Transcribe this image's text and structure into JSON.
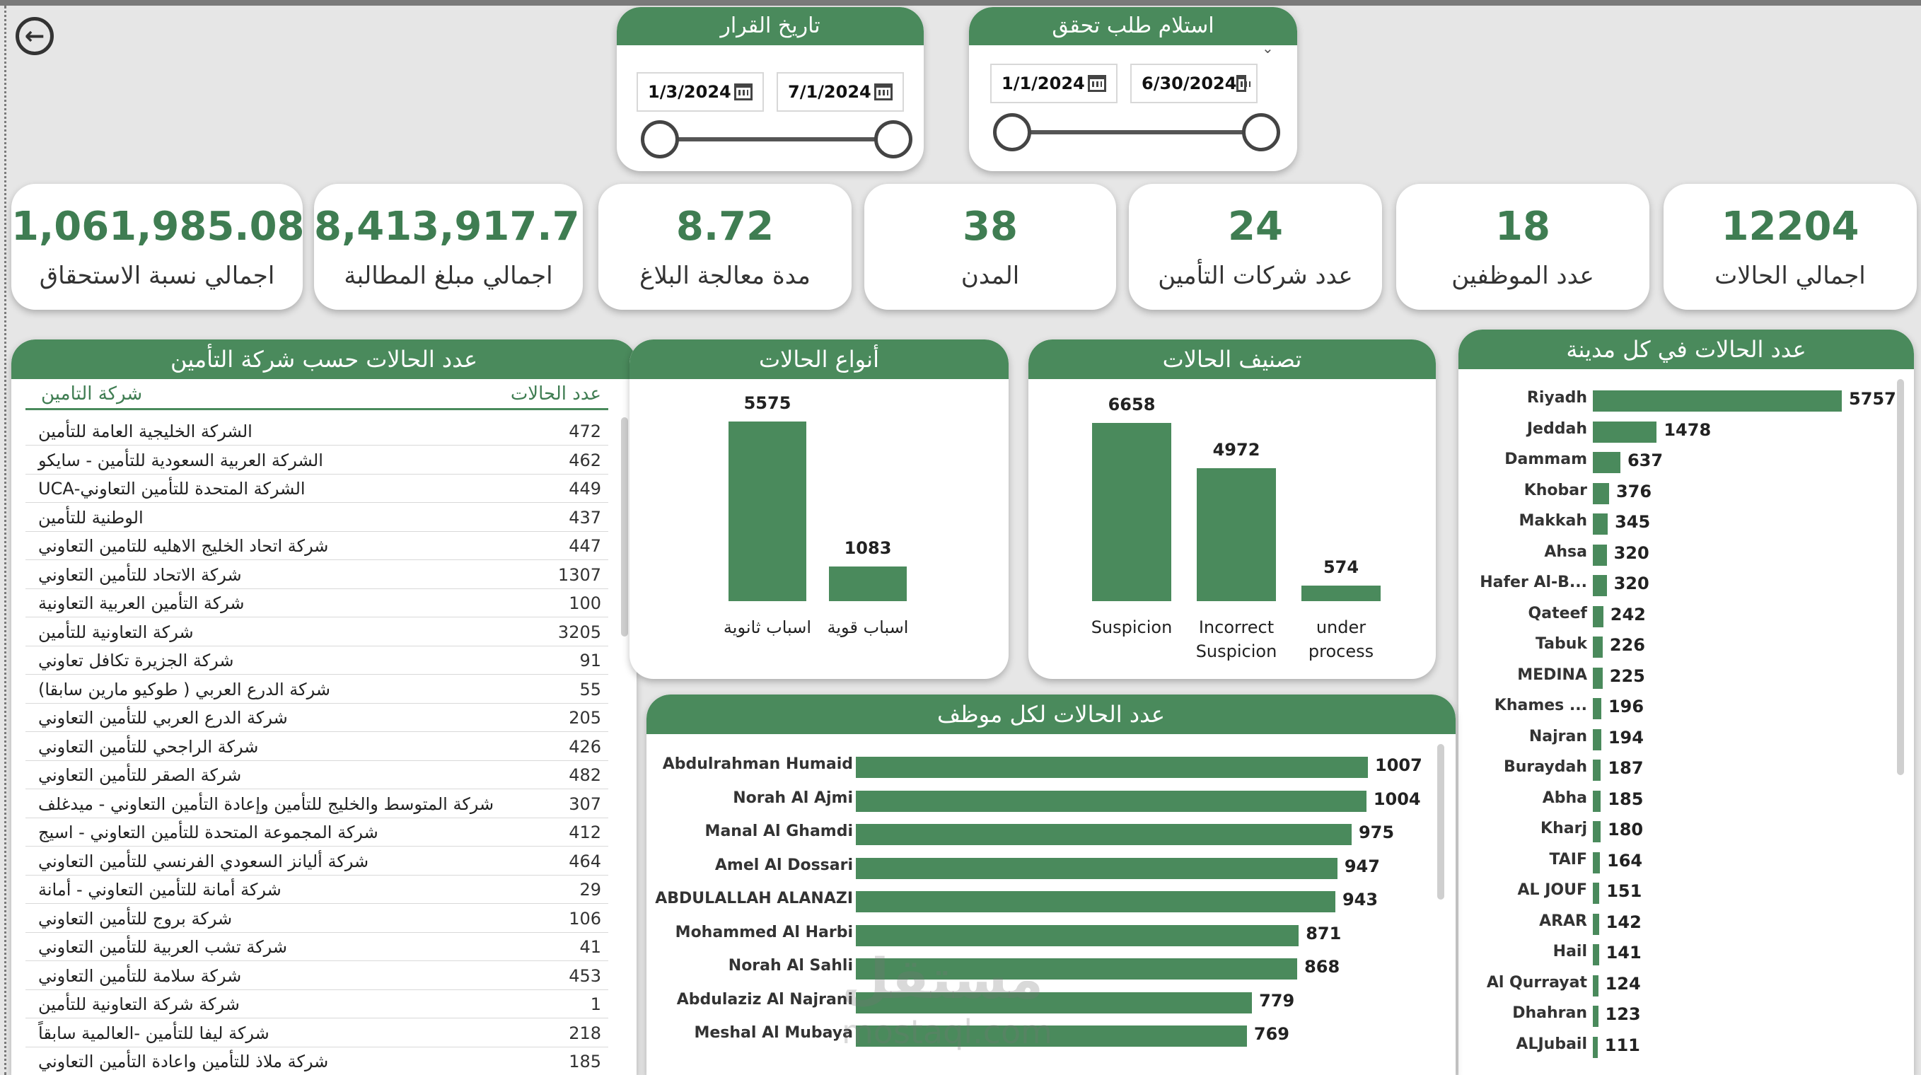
{
  "slicers": {
    "decision_date": {
      "title": "تاريخ القرار",
      "from": "1/3/2024",
      "to": "7/1/2024"
    },
    "verification_request": {
      "title": "استلام طلب تحقق",
      "from": "1/1/2024",
      "to": "6/30/2024"
    }
  },
  "kpis": [
    {
      "value": "12204",
      "label": "اجمالي الحالات"
    },
    {
      "value": "18",
      "label": "عدد الموظفين"
    },
    {
      "value": "24",
      "label": "عدد شركات التأمين"
    },
    {
      "value": "38",
      "label": "المدن"
    },
    {
      "value": "8.72",
      "label": "مدة معالجة البلاغ"
    },
    {
      "value": "8,413,917.71",
      "label": "اجمالي مبلغ المطالبة"
    },
    {
      "value": "1,061,985.08",
      "label": "اجمالي نسبة الاستحقاق"
    }
  ],
  "insurance_table": {
    "title": "عدد الحالات حسب شركة التأمين",
    "col_company": "شركة التامين",
    "col_count": "عدد الحالات",
    "rows": [
      {
        "name": "الشركة الخليجية العامة للتأمين",
        "count": "472"
      },
      {
        "name": "الشركة العربية السعودية للتأمين - سايكو",
        "count": "462"
      },
      {
        "name": "الشركة المتحدة للتأمين التعاوني-UCA",
        "count": "449"
      },
      {
        "name": "الوطنية للتأمين",
        "count": "437"
      },
      {
        "name": "شركة اتحاد الخليج الاهليه للتامين التعاوني",
        "count": "447"
      },
      {
        "name": "شركة الاتحاد للتأمين التعاوني",
        "count": "1307"
      },
      {
        "name": "شركة التأمين العربية التعاونية",
        "count": "100"
      },
      {
        "name": "شركة التعاونية للتأمين",
        "count": "3205"
      },
      {
        "name": "شركة الجزيرة تكافل تعاوني",
        "count": "91"
      },
      {
        "name": "شركة الدرع العربي ( طوكيو مارين سابقا)",
        "count": "55"
      },
      {
        "name": "شركة الدرع العربي للتأمين التعاوني",
        "count": "205"
      },
      {
        "name": "شركة الراجحي للتأمين التعاوني",
        "count": "426"
      },
      {
        "name": "شركة الصقر للتأمين التعاوني",
        "count": "482"
      },
      {
        "name": "شركة المتوسط والخليج للتأمين وإعادة التأمين التعاوني - ميدغلف",
        "count": "307"
      },
      {
        "name": "شركة المجموعة المتحدة للتأمين التعاوني - اسيج",
        "count": "412"
      },
      {
        "name": "شركة أليانز السعودي الفرنسي للتأمين التعاوني",
        "count": "464"
      },
      {
        "name": "شركة أمانة للتأمين التعاوني - أمانة",
        "count": "29"
      },
      {
        "name": "شركة بروج للتأمين التعاوني",
        "count": "106"
      },
      {
        "name": "شركة تشب العربية للتأمين التعاوني",
        "count": "41"
      },
      {
        "name": "شركة سلامة للتأمين التعاوني",
        "count": "453"
      },
      {
        "name": "شركة شركة التعاونية للتأمين",
        "count": "1"
      },
      {
        "name": "شركة ليفا للتأمين -العالمية سابقاً",
        "count": "218"
      },
      {
        "name": "شركة ملاذ للتأمين واعادة التأمين التعاوني",
        "count": "185"
      }
    ]
  },
  "case_types": {
    "title": "أنواع الحالات",
    "chart_data": {
      "type": "bar",
      "categories": [
        "اسباب ثانوية",
        "اسباب قوية"
      ],
      "values": [
        5575,
        1083
      ]
    }
  },
  "case_classification": {
    "title": "تصنيف الحالات",
    "chart_data": {
      "type": "bar",
      "categories": [
        "Suspicion",
        "Incorrect Suspicion",
        "under process"
      ],
      "values": [
        6658,
        4972,
        574
      ]
    }
  },
  "employee_cases": {
    "title": "عدد الحالات لكل موظف",
    "chart_data": {
      "type": "bar",
      "orientation": "horizontal",
      "categories": [
        "Abdulrahman Humaid",
        "Norah Al Ajmi",
        "Manal Al Ghamdi",
        "Amel Al Dossari",
        "ABDULALLAH ALANAZI",
        "Mohammed Al Harbi",
        "Norah Al Sahli",
        "Abdulaziz Al Najrani",
        "Meshal Al Mubaya"
      ],
      "values": [
        1007,
        1004,
        975,
        947,
        943,
        871,
        868,
        779,
        769
      ]
    }
  },
  "city_cases": {
    "title": "عدد الحالات في كل مدينة",
    "chart_data": {
      "type": "bar",
      "orientation": "horizontal",
      "categories": [
        "Riyadh",
        "Jeddah",
        "Dammam",
        "Khobar",
        "Makkah",
        "Ahsa",
        "Hafer Al-B...",
        "Qateef",
        "Tabuk",
        "MEDINA",
        "Khames ...",
        "Najran",
        "Buraydah",
        "Abha",
        "Kharj",
        "TAIF",
        "AL JOUF",
        "ARAR",
        "Hail",
        "Al Qurrayat",
        "Dhahran",
        "ALJubail"
      ],
      "values": [
        5757,
        1478,
        637,
        376,
        345,
        320,
        320,
        242,
        226,
        225,
        196,
        194,
        187,
        185,
        180,
        164,
        151,
        142,
        141,
        124,
        123,
        111
      ]
    }
  },
  "watermark": {
    "main": "مستقل",
    "sub": "mostaql.com"
  }
}
